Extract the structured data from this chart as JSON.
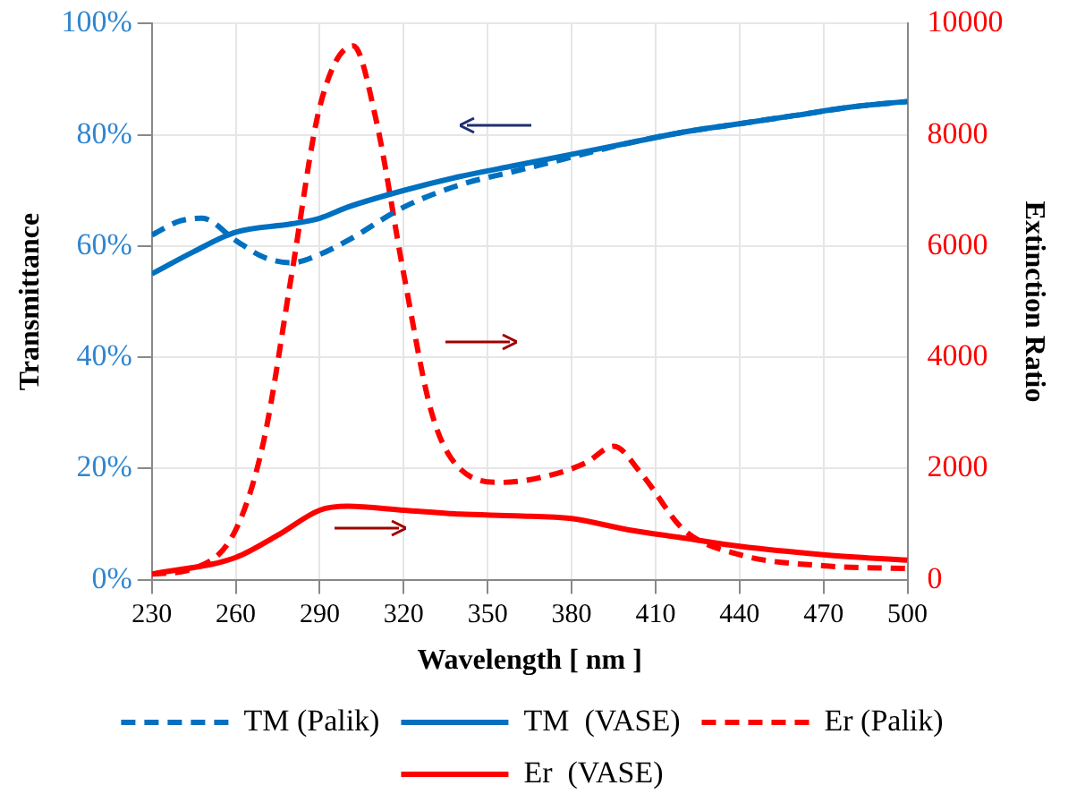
{
  "chart_data": {
    "type": "line",
    "xlabel": "Wavelength [ nm ]",
    "ylabel": "Transmittance",
    "y2label": "Extinction Ratio",
    "xlim": [
      230,
      500
    ],
    "xticks": [
      230,
      260,
      290,
      320,
      350,
      380,
      410,
      440,
      470,
      500
    ],
    "ylim": [
      0,
      100
    ],
    "yticks": [
      {
        "value": 0,
        "label": "0%"
      },
      {
        "value": 20,
        "label": "20%"
      },
      {
        "value": 40,
        "label": "40%"
      },
      {
        "value": 60,
        "label": "60%"
      },
      {
        "value": 80,
        "label": "80%"
      },
      {
        "value": 100,
        "label": "100%"
      }
    ],
    "y2lim": [
      0,
      10000
    ],
    "y2ticks": [
      0,
      2000,
      4000,
      6000,
      8000,
      10000
    ],
    "grid": true,
    "legend": "bottom",
    "marker": "none",
    "series": [
      {
        "name": "TM (Palik)",
        "color": "#0070c0",
        "line_style": "dashed",
        "x": [
          230,
          240,
          248,
          260,
          270,
          280,
          290,
          300,
          320,
          340,
          360,
          380,
          400,
          420,
          440,
          460,
          480,
          500
        ],
        "values": [
          62,
          64.5,
          65,
          61,
          58,
          57,
          58.5,
          61,
          67,
          71,
          73.5,
          76,
          78.5,
          80.5,
          82,
          83.5,
          85,
          86
        ]
      },
      {
        "name": "TM  (VASE)",
        "color": "#0070c0",
        "line_style": "solid",
        "x": [
          230,
          245,
          260,
          280,
          290,
          300,
          320,
          340,
          360,
          380,
          400,
          420,
          440,
          460,
          480,
          500
        ],
        "values": [
          55,
          59,
          62.5,
          64,
          65,
          67,
          70,
          72.5,
          74.5,
          76.5,
          78.5,
          80.5,
          82,
          83.5,
          85,
          86
        ]
      },
      {
        "name": "Er (Palik)",
        "color": "#ff0000",
        "line_style": "dashed",
        "axis": "y2",
        "x": [
          230,
          245,
          260,
          270,
          280,
          290,
          302,
          310,
          320,
          330,
          340,
          355,
          370,
          385,
          395,
          405,
          420,
          440,
          470,
          500
        ],
        "values": [
          100,
          200,
          900,
          2500,
          5500,
          8500,
          9600,
          8300,
          5500,
          3000,
          2000,
          1750,
          1850,
          2100,
          2400,
          1900,
          900,
          450,
          250,
          200
        ]
      },
      {
        "name": "Er  (VASE)",
        "color": "#ff0000",
        "line_style": "solid",
        "axis": "y2",
        "x": [
          230,
          260,
          275,
          290,
          300,
          320,
          340,
          360,
          380,
          400,
          420,
          440,
          470,
          500
        ],
        "values": [
          100,
          400,
          800,
          1250,
          1320,
          1250,
          1180,
          1150,
          1100,
          900,
          750,
          600,
          450,
          350
        ]
      }
    ]
  }
}
